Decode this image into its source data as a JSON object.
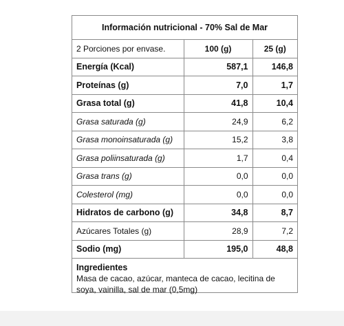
{
  "title": "Información nutricional - 70% Sal de Mar",
  "header": {
    "servings": "2 Porciones por envase.",
    "col1": "100 (g)",
    "col2": "25 (g)"
  },
  "rows": [
    {
      "label": "Energía (Kcal)",
      "v100": "587,1",
      "v25": "146,8"
    },
    {
      "label": "Proteínas (g)",
      "v100": "7,0",
      "v25": "1,7"
    },
    {
      "label": "Grasa total (g)",
      "v100": "41,8",
      "v25": "10,4"
    },
    {
      "label": "Grasa saturada (g)",
      "v100": "24,9",
      "v25": "6,2"
    },
    {
      "label": "Grasa monoinsaturada (g)",
      "v100": "15,2",
      "v25": "3,8"
    },
    {
      "label": "Grasa poliinsaturada (g)",
      "v100": "1,7",
      "v25": "0,4"
    },
    {
      "label": "Grasa trans (g)",
      "v100": "0,0",
      "v25": "0,0"
    },
    {
      "label": "Colesterol (mg)",
      "v100": "0,0",
      "v25": "0,0"
    },
    {
      "label": "Hidratos de carbono (g)",
      "v100": "34,8",
      "v25": "8,7"
    },
    {
      "label": "Azúcares Totales (g)",
      "v100": "28,9",
      "v25": "7,2"
    },
    {
      "label": "Sodio (mg)",
      "v100": "195,0",
      "v25": "48,8"
    }
  ],
  "ingredients": {
    "heading": "Ingredientes",
    "text": "Masa de cacao, azúcar, manteca de cacao, lecitina de soya, vainilla, sal de mar (0,5mg)"
  }
}
